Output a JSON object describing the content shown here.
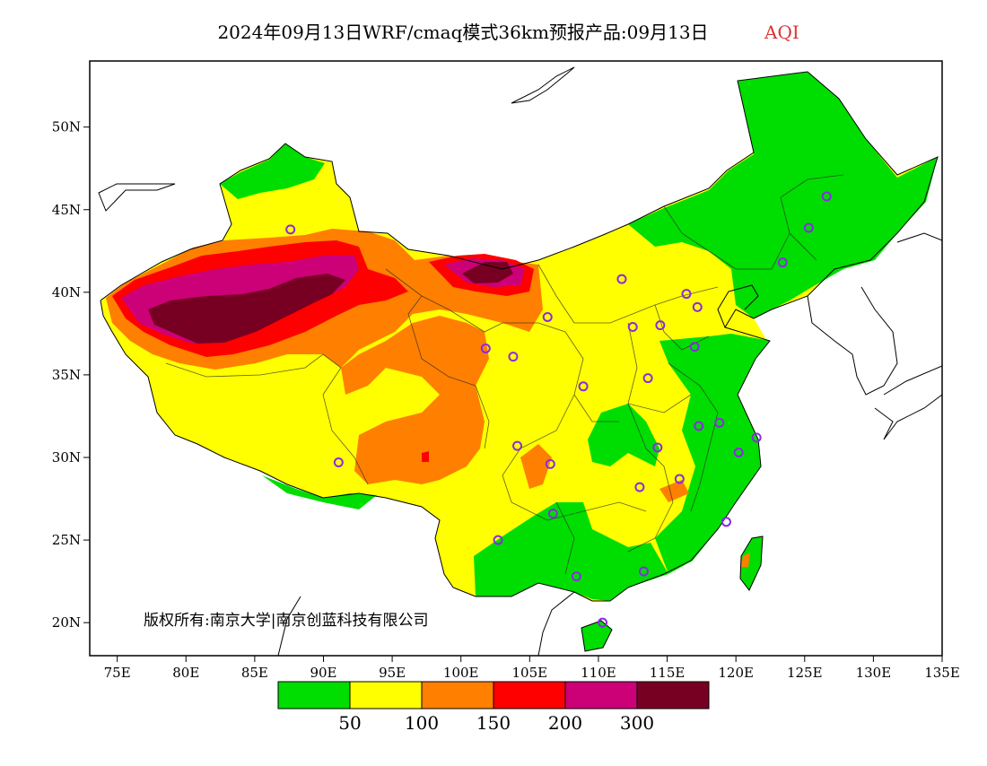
{
  "title": {
    "main": "2024年09月13日WRF/cmaq模式36km预报产品:09月13日",
    "variable": "AQI"
  },
  "map": {
    "lon_range": [
      73,
      135
    ],
    "lat_range": [
      18,
      54
    ],
    "x_ticks": [
      {
        "value": 75,
        "label": "75E"
      },
      {
        "value": 80,
        "label": "80E"
      },
      {
        "value": 85,
        "label": "85E"
      },
      {
        "value": 90,
        "label": "90E"
      },
      {
        "value": 95,
        "label": "95E"
      },
      {
        "value": 100,
        "label": "100E"
      },
      {
        "value": 105,
        "label": "105E"
      },
      {
        "value": 110,
        "label": "110E"
      },
      {
        "value": 115,
        "label": "115E"
      },
      {
        "value": 120,
        "label": "120E"
      },
      {
        "value": 125,
        "label": "125E"
      },
      {
        "value": 130,
        "label": "130E"
      },
      {
        "value": 135,
        "label": "135E"
      }
    ],
    "y_ticks": [
      {
        "value": 20,
        "label": "20N"
      },
      {
        "value": 25,
        "label": "25N"
      },
      {
        "value": 30,
        "label": "30N"
      },
      {
        "value": 35,
        "label": "35N"
      },
      {
        "value": 40,
        "label": "40N"
      },
      {
        "value": 45,
        "label": "45N"
      },
      {
        "value": 50,
        "label": "50N"
      }
    ],
    "copyright": "版权所有:南京大学|南京创蓝科技有限公司"
  },
  "legend": {
    "colors": [
      "#00dd00",
      "#ffff00",
      "#ff7f00",
      "#ff0000",
      "#cc0077",
      "#770022"
    ],
    "labels": [
      "50",
      "100",
      "150",
      "200",
      "300"
    ]
  },
  "colors": {
    "good": "#00dd00",
    "moderate": "#ffff00",
    "sensitive": "#ff7f00",
    "unhealthy": "#ff0000",
    "very_unhealthy": "#cc0077",
    "hazardous": "#770022",
    "title_accent": "#dd3333",
    "station_marker": "#8a2be2"
  },
  "stations": [
    [
      87.6,
      43.8
    ],
    [
      91.1,
      29.7
    ],
    [
      101.8,
      36.6
    ],
    [
      103.8,
      36.1
    ],
    [
      106.3,
      38.5
    ],
    [
      104.1,
      30.7
    ],
    [
      106.5,
      29.6
    ],
    [
      102.7,
      25.0
    ],
    [
      106.7,
      26.6
    ],
    [
      108.4,
      22.8
    ],
    [
      110.3,
      20.0
    ],
    [
      113.3,
      23.1
    ],
    [
      108.9,
      34.3
    ],
    [
      111.7,
      40.8
    ],
    [
      112.5,
      37.9
    ],
    [
      114.5,
      38.0
    ],
    [
      116.4,
      39.9
    ],
    [
      117.2,
      39.1
    ],
    [
      117.0,
      36.7
    ],
    [
      113.6,
      34.8
    ],
    [
      114.3,
      30.6
    ],
    [
      113.0,
      28.2
    ],
    [
      115.9,
      28.7
    ],
    [
      117.3,
      31.9
    ],
    [
      118.8,
      32.1
    ],
    [
      120.2,
      30.3
    ],
    [
      121.5,
      31.2
    ],
    [
      119.3,
      26.1
    ],
    [
      123.4,
      41.8
    ],
    [
      125.3,
      43.9
    ],
    [
      126.6,
      45.8
    ]
  ]
}
